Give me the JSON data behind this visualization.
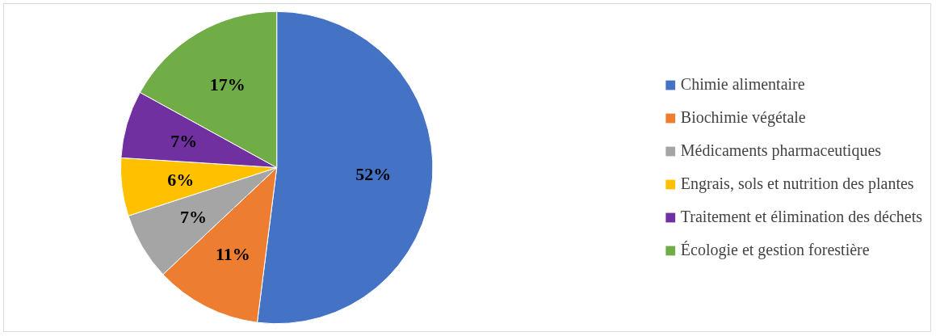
{
  "chart_data": {
    "type": "pie",
    "categories": [
      "Chimie alimentaire",
      "Biochimie végétale",
      "Médicaments pharmaceutiques",
      "Engrais, sols et nutrition des plantes",
      "Traitement et élimination des déchets",
      "Écologie et gestion forestière"
    ],
    "values": [
      52,
      11,
      7,
      6,
      7,
      17
    ],
    "colors": [
      "#4472c4",
      "#ed7d31",
      "#a5a5a5",
      "#ffc000",
      "#7030a0",
      "#70ad47"
    ],
    "value_labels": [
      "52%",
      "11%",
      "7%",
      "6%",
      "7%",
      "17%"
    ],
    "legend": "right"
  }
}
